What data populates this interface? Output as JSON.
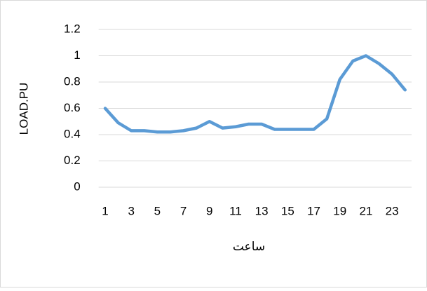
{
  "chart_data": {
    "type": "line",
    "x_label": "ساعت",
    "y_label": "LOAD.PU",
    "categories": [
      "1",
      null,
      "3",
      null,
      "5",
      null,
      "7",
      null,
      "9",
      null,
      "11",
      null,
      "13",
      null,
      "15",
      null,
      "17",
      null,
      "19",
      null,
      "21",
      null,
      "23",
      null
    ],
    "series": [
      {
        "name": "LOAD.PU",
        "color": "#5b9bd5",
        "values": [
          0.6,
          0.49,
          0.43,
          0.43,
          0.42,
          0.42,
          0.43,
          0.45,
          0.5,
          0.45,
          0.46,
          0.48,
          0.48,
          0.44,
          0.44,
          0.44,
          0.44,
          0.52,
          0.82,
          0.96,
          1.0,
          0.94,
          0.86,
          0.74
        ]
      }
    ],
    "ylim": [
      0,
      1.2
    ],
    "yticks": [
      0,
      0.2,
      0.4,
      0.6,
      0.8,
      1,
      1.2
    ],
    "grid": true
  }
}
